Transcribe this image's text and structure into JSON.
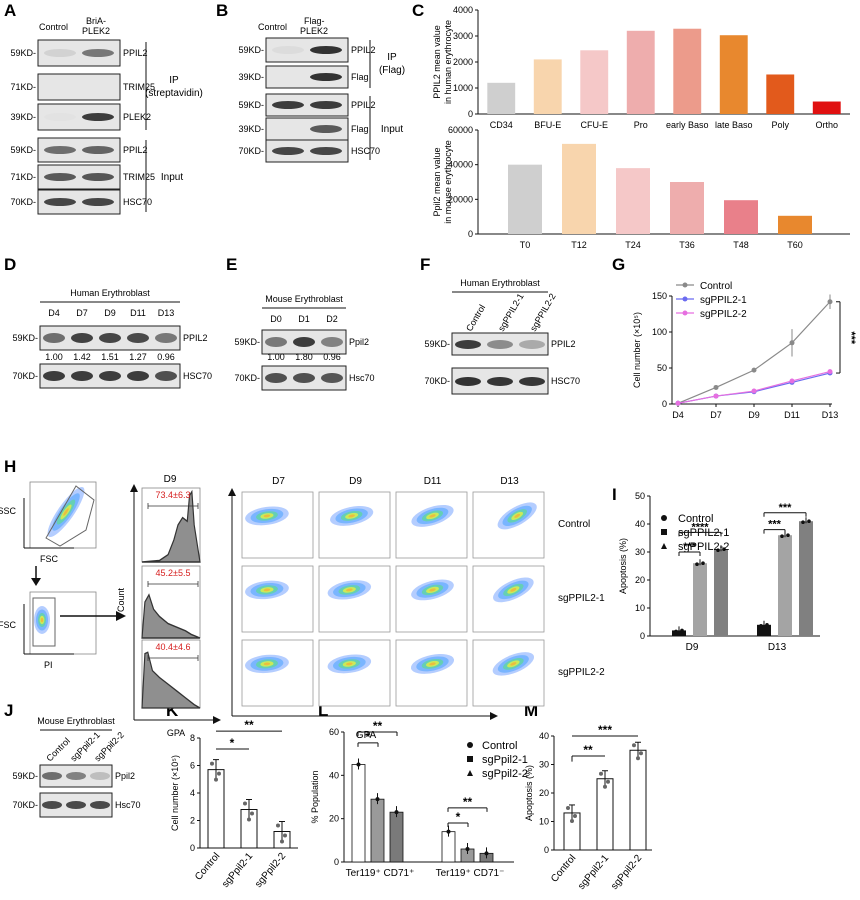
{
  "panels": {
    "A": "A",
    "B": "B",
    "C": "C",
    "D": "D",
    "E": "E",
    "F": "F",
    "G": "G",
    "H": "H",
    "I": "I",
    "J": "J",
    "K": "K",
    "L": "L",
    "M": "M"
  },
  "blotA": {
    "lanes": [
      "Control",
      "BriA-PLEK2"
    ],
    "rows": [
      {
        "kd": "59KD-",
        "label": "PPIL2"
      },
      {
        "kd": "71KD-",
        "label": "TRIM25"
      },
      {
        "kd": "39KD-",
        "label": "PLEK2"
      },
      {
        "kd": "59KD-",
        "label": "PPIL2"
      },
      {
        "kd": "71KD-",
        "label": "TRIM25"
      },
      {
        "kd": "70KD-",
        "label": "HSC70"
      }
    ],
    "group_ip": [
      "IP",
      "(streptavidin)"
    ],
    "group_input": "Input"
  },
  "blotB": {
    "lanes": [
      "Control",
      "Flag-PLEK2"
    ],
    "rows": [
      {
        "kd": "59KD-",
        "label": "PPIL2"
      },
      {
        "kd": "39KD-",
        "label": "Flag"
      },
      {
        "kd": "59KD-",
        "label": "PPIL2"
      },
      {
        "kd": "39KD-",
        "label": "Flag"
      },
      {
        "kd": "70KD-",
        "label": "HSC70"
      }
    ],
    "group_ip": [
      "IP",
      "(Flag)"
    ],
    "group_input": "Input"
  },
  "blotD": {
    "header": "Human Erythroblast",
    "lanes": [
      "D4",
      "D7",
      "D9",
      "D11",
      "D13"
    ],
    "quant": [
      "1.00",
      "1.42",
      "1.51",
      "1.27",
      "0.96"
    ],
    "rows": [
      {
        "kd": "59KD-",
        "label": "PPIL2"
      },
      {
        "kd": "70KD-",
        "label": "HSC70"
      }
    ]
  },
  "blotE": {
    "header": "Mouse Erythroblast",
    "lanes": [
      "D0",
      "D1",
      "D2"
    ],
    "quant": [
      "1.00",
      "1.80",
      "0.96"
    ],
    "rows": [
      {
        "kd": "59KD-",
        "label": "Ppil2"
      },
      {
        "kd": "70KD-",
        "label": "Hsc70"
      }
    ]
  },
  "blotF": {
    "header": "Human Erythroblast",
    "lanes": [
      "Control",
      "sgPPIL2-1",
      "sgPPIL2-2"
    ],
    "rows": [
      {
        "kd": "59KD-",
        "label": "PPIL2"
      },
      {
        "kd": "70KD-",
        "label": "HSC70"
      }
    ]
  },
  "blotJ": {
    "header": "Mouse Erythroblast",
    "lanes": [
      "Control",
      "sgPpil2-1",
      "sgPpil2-2"
    ],
    "rows": [
      {
        "kd": "59KD-",
        "label": "Ppil2"
      },
      {
        "kd": "70KD-",
        "label": "Hsc70"
      }
    ]
  },
  "flowH": {
    "gate1_y": "SSC",
    "gate1_x": "FSC",
    "gate2_y": "FSC",
    "gate2_x": "PI",
    "hist_title": "D9",
    "hist_values": [
      "73.4±6.3",
      "45.2±5.5",
      "40.4±4.6"
    ],
    "hist_y": "Count",
    "hist_x": "GPA",
    "dot_cols": [
      "D7",
      "D9",
      "D11",
      "D13"
    ],
    "dot_rows": [
      "Control",
      "sgPPIL2-1",
      "sgPPIL2-2"
    ],
    "dot_x": "GPA"
  },
  "chart_data": [
    {
      "panel": "C-top",
      "type": "bar",
      "ylabel": "PPIL2 mean value in human erythrocyte",
      "categories": [
        "CD34",
        "BFU-E",
        "CFU-E",
        "Pro",
        "early Baso",
        "late Baso",
        "Poly",
        "Ortho"
      ],
      "values": [
        1200,
        2100,
        2450,
        3200,
        3280,
        3030,
        1520,
        480
      ],
      "ylim": [
        0,
        4000
      ],
      "yticks": [
        "0",
        "1000",
        "2000",
        "3000",
        "4000"
      ],
      "colors": [
        "#cfcfcf",
        "#f8d5ad",
        "#f5c8c8",
        "#eeadad",
        "#ec9b8b",
        "#e8882e",
        "#e25a1c",
        "#e01010"
      ]
    },
    {
      "panel": "C-bottom",
      "type": "bar",
      "ylabel": "Ppil2 mean value in mouse erythrocyte",
      "categories": [
        "T0",
        "T12",
        "T24",
        "T36",
        "T48",
        "T60"
      ],
      "values": [
        40000,
        52000,
        38000,
        30000,
        19500,
        10500
      ],
      "ylim": [
        0,
        60000
      ],
      "yticks": [
        "0",
        "20000",
        "40000",
        "60000"
      ],
      "colors": [
        "#cfcfcf",
        "#f8d5ad",
        "#f5c8c8",
        "#eeadad",
        "#e9808a",
        "#e8882e"
      ]
    },
    {
      "panel": "G",
      "type": "line",
      "ylabel": "Cell number (×10⁵)",
      "categories": [
        "D4",
        "D7",
        "D9",
        "D11",
        "D13"
      ],
      "ylim": [
        0,
        150
      ],
      "yticks": [
        "0",
        "50",
        "100",
        "150"
      ],
      "series": [
        {
          "name": "Control",
          "values": [
            1,
            23,
            47,
            85,
            142
          ],
          "color": "#8a8a8a"
        },
        {
          "name": "sgPPIL2-1",
          "values": [
            1,
            11,
            17,
            30,
            43
          ],
          "color": "#6b6bf0"
        },
        {
          "name": "sgPPIL2-2",
          "values": [
            1,
            11,
            18,
            32,
            45
          ],
          "color": "#e66fe0"
        }
      ],
      "significance": "***"
    },
    {
      "panel": "I",
      "type": "bar",
      "ylabel": "Apoptosis (%)",
      "categories": [
        "D9",
        "D13"
      ],
      "ylim": [
        0,
        50
      ],
      "yticks": [
        "0",
        "10",
        "20",
        "30",
        "40",
        "50"
      ],
      "series": [
        {
          "name": "Control",
          "values": [
            2,
            4
          ],
          "color": "#111111"
        },
        {
          "name": "sgPPIL2-1",
          "values": [
            26,
            36
          ],
          "color": "#a4a4a4"
        },
        {
          "name": "sgPPIL2-2",
          "values": [
            31,
            41
          ],
          "color": "#808080"
        }
      ],
      "significance": [
        "***",
        "****",
        "***",
        "***"
      ]
    },
    {
      "panel": "K",
      "type": "bar",
      "ylabel": "Cell number (×10⁵)",
      "categories": [
        "Control",
        "sgPpil2-1",
        "sgPpil2-2"
      ],
      "values": [
        5.7,
        2.8,
        1.2
      ],
      "ylim": [
        0,
        8
      ],
      "yticks": [
        "0",
        "2",
        "4",
        "6",
        "8"
      ],
      "significance": [
        "*",
        "**"
      ]
    },
    {
      "panel": "L",
      "type": "bar",
      "ylabel": "% Population",
      "categories": [
        "Ter119⁺ CD71⁺",
        "Ter119⁺ CD71⁻"
      ],
      "ylim": [
        0,
        60
      ],
      "yticks": [
        "0",
        "20",
        "40",
        "60"
      ],
      "series": [
        {
          "name": "Control",
          "values": [
            45,
            14
          ],
          "color": "#ffffff"
        },
        {
          "name": "sgPpil2-1",
          "values": [
            29,
            6
          ],
          "color": "#9a9a9a"
        },
        {
          "name": "sgPpil2-2",
          "values": [
            23,
            4
          ],
          "color": "#7a7a7a"
        }
      ],
      "significance": [
        "*",
        "**",
        "*",
        "**"
      ]
    },
    {
      "panel": "M",
      "type": "bar",
      "ylabel": "Apoptosis (%)",
      "categories": [
        "Control",
        "sgPpil2-1",
        "sgPpil2-2"
      ],
      "values": [
        13,
        25,
        35
      ],
      "ylim": [
        0,
        40
      ],
      "yticks": [
        "0",
        "10",
        "20",
        "30",
        "40"
      ],
      "significance": [
        "**",
        "***"
      ]
    }
  ]
}
